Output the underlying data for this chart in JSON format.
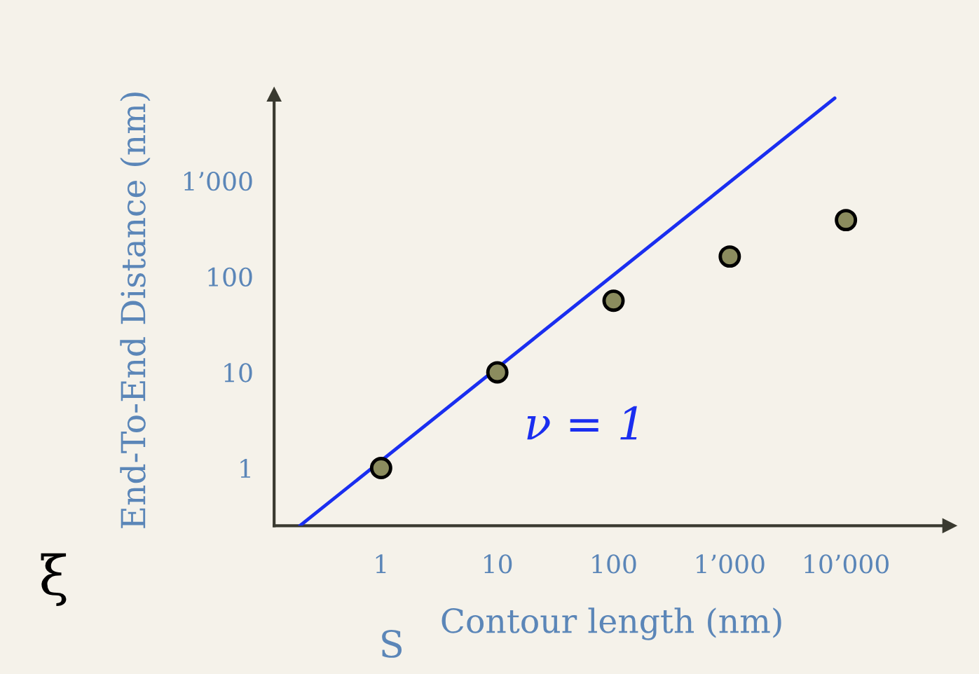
{
  "chart_data": {
    "type": "scatter",
    "xlabel": "Contour length (nm)",
    "ylabel": "End-To-End Distance (nm)",
    "log": "xy",
    "xlim": [
      0.12,
      78000
    ],
    "ylim": [
      0.25,
      8000
    ],
    "xticks": [
      {
        "value": 1,
        "label": "1"
      },
      {
        "value": 10,
        "label": "10"
      },
      {
        "value": 100,
        "label": "100"
      },
      {
        "value": 1000,
        "label": "1’000"
      },
      {
        "value": 10000,
        "label": "10’000"
      }
    ],
    "yticks": [
      {
        "value": 1,
        "label": "1"
      },
      {
        "value": 10,
        "label": "10"
      },
      {
        "value": 100,
        "label": "100"
      },
      {
        "value": 1000,
        "label": "1’000"
      }
    ],
    "grid": false,
    "legend": false,
    "series": [
      {
        "marker": "circle",
        "color": "#8b8c5e",
        "x": [
          1,
          10,
          100,
          1000,
          10000
        ],
        "values": [
          1,
          10,
          56,
          162,
          389
        ]
      },
      {
        "type": "line",
        "color": "#1a2ef0",
        "x": [
          0.2,
          8000
        ],
        "values": [
          0.25,
          7300
        ],
        "line_style": "solid"
      }
    ],
    "annotations": [
      "ν = 1",
      "ξ",
      "S"
    ]
  }
}
